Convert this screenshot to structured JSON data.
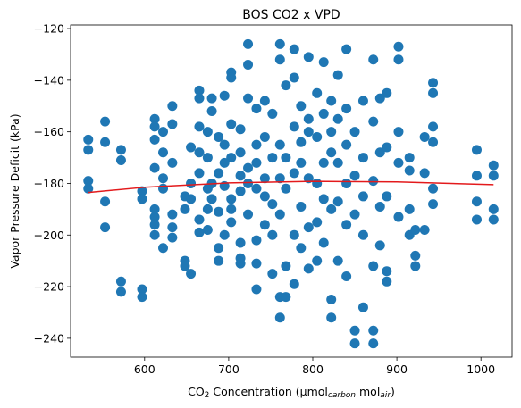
{
  "chart_data": {
    "type": "scatter",
    "title": "BOS CO2 x VPD",
    "xlabel_parts": [
      {
        "text": "CO"
      },
      {
        "text": "2",
        "sub": true
      },
      {
        "text": " Concentration (μmol"
      },
      {
        "text": "carbon",
        "sub": true,
        "italic": true
      },
      {
        "text": " mol"
      },
      {
        "text": "air",
        "sub": true,
        "italic": true
      },
      {
        "text": ")"
      }
    ],
    "ylabel": "Vapor Pressure Deficit (kPa)",
    "xlim": [
      512,
      1037
    ],
    "ylim": [
      -247.3,
      -118.6
    ],
    "xticks": [
      600,
      700,
      800,
      900,
      1000
    ],
    "yticks": [
      {
        "value": -240,
        "label": "−240"
      },
      {
        "value": -220,
        "label": "−220"
      },
      {
        "value": -200,
        "label": "−200"
      },
      {
        "value": -180,
        "label": "−180"
      },
      {
        "value": -160,
        "label": "−160"
      },
      {
        "value": -140,
        "label": "−140"
      },
      {
        "value": -120,
        "label": "−120"
      }
    ],
    "series": [
      {
        "kind": "scatter",
        "color": "#1f77b4",
        "x": [
          533,
          533,
          533,
          533,
          553,
          553,
          553,
          553,
          572,
          572,
          572,
          572,
          597,
          597,
          597,
          597,
          612,
          612,
          612,
          612,
          612,
          612,
          612,
          612,
          622,
          622,
          622,
          622,
          622,
          633,
          633,
          633,
          633,
          633,
          633,
          648,
          648,
          648,
          648,
          655,
          655,
          655,
          655,
          665,
          665,
          665,
          665,
          665,
          665,
          665,
          675,
          675,
          675,
          675,
          675,
          680,
          680,
          680,
          680,
          688,
          688,
          688,
          688,
          688,
          695,
          695,
          695,
          695,
          695,
          703,
          703,
          703,
          703,
          703,
          703,
          703,
          714,
          714,
          714,
          714,
          714,
          714,
          714,
          723,
          723,
          723,
          723,
          723,
          723,
          733,
          733,
          733,
          733,
          733,
          733,
          733,
          743,
          743,
          743,
          743,
          743,
          752,
          752,
          752,
          752,
          752,
          761,
          761,
          761,
          761,
          761,
          761,
          761,
          768,
          768,
          768,
          768,
          768,
          778,
          778,
          778,
          778,
          778,
          778,
          786,
          786,
          786,
          786,
          786,
          795,
          795,
          795,
          795,
          795,
          795,
          805,
          805,
          805,
          805,
          805,
          813,
          813,
          813,
          813,
          813,
          822,
          822,
          822,
          822,
          822,
          822,
          830,
          830,
          830,
          830,
          830,
          840,
          840,
          840,
          840,
          840,
          840,
          850,
          850,
          850,
          850,
          850,
          860,
          860,
          860,
          860,
          860,
          872,
          872,
          872,
          872,
          872,
          872,
          880,
          880,
          880,
          880,
          888,
          888,
          888,
          888,
          888,
          902,
          902,
          902,
          902,
          902,
          915,
          915,
          915,
          915,
          922,
          922,
          922,
          933,
          933,
          933,
          943,
          943,
          943,
          943,
          943,
          943,
          995,
          995,
          995,
          995,
          1015,
          1015,
          1015,
          1015
        ],
        "y": [
          -163,
          -167,
          -179,
          -182,
          -156,
          -164,
          -187,
          -197,
          -167,
          -171,
          -218,
          -222,
          -183,
          -186,
          -221,
          -224,
          -155,
          -158,
          -163,
          -174,
          -190,
          -193,
          -196,
          -200,
          -160,
          -168,
          -178,
          -182,
          -205,
          -150,
          -157,
          -172,
          -192,
          -197,
          -201,
          -185,
          -190,
          -210,
          -212,
          -166,
          -180,
          -186,
          -215,
          -144,
          -147,
          -158,
          -168,
          -176,
          -194,
          -199,
          -160,
          -170,
          -182,
          -190,
          -198,
          -147,
          -152,
          -180,
          -186,
          -162,
          -176,
          -191,
          -205,
          -210,
          -146,
          -165,
          -172,
          -181,
          -200,
          -137,
          -139,
          -157,
          -170,
          -186,
          -190,
          -195,
          -159,
          -168,
          -177,
          -183,
          -203,
          -209,
          -211,
          -126,
          -134,
          -147,
          -174,
          -180,
          -192,
          -151,
          -165,
          -172,
          -182,
          -202,
          -211,
          -221,
          -148,
          -162,
          -178,
          -185,
          -196,
          -153,
          -170,
          -188,
          -200,
          -215,
          -126,
          -132,
          -165,
          -178,
          -192,
          -224,
          -232,
          -142,
          -170,
          -182,
          -212,
          -224,
          -128,
          -139,
          -158,
          -176,
          -200,
          -219,
          -150,
          -164,
          -172,
          -189,
          -205,
          -131,
          -155,
          -160,
          -178,
          -197,
          -213,
          -145,
          -162,
          -180,
          -195,
          -210,
          -133,
          -153,
          -172,
          -186,
          -203,
          -148,
          -160,
          -168,
          -190,
          -225,
          -232,
          -138,
          -155,
          -172,
          -187,
          -210,
          -128,
          -151,
          -165,
          -180,
          -196,
          -216,
          -160,
          -177,
          -192,
          -237,
          -242,
          -148,
          -170,
          -185,
          -200,
          -228,
          -132,
          -156,
          -179,
          -212,
          -237,
          -242,
          -147,
          -168,
          -189,
          -204,
          -145,
          -166,
          -185,
          -214,
          -218,
          -127,
          -132,
          -160,
          -172,
          -193,
          -170,
          -175,
          -190,
          -200,
          -198,
          -208,
          -212,
          -162,
          -176,
          -198,
          -141,
          -145,
          -158,
          -164,
          -182,
          -188,
          -167,
          -177,
          -187,
          -194,
          -173,
          -177,
          -190,
          -194
        ]
      },
      {
        "kind": "line",
        "color": "#e31a1c",
        "x": [
          533,
          600,
          700,
          800,
          900,
          1015
        ],
        "y": [
          -183.5,
          -181.5,
          -179.8,
          -179.2,
          -179.4,
          -180.5
        ]
      }
    ]
  }
}
